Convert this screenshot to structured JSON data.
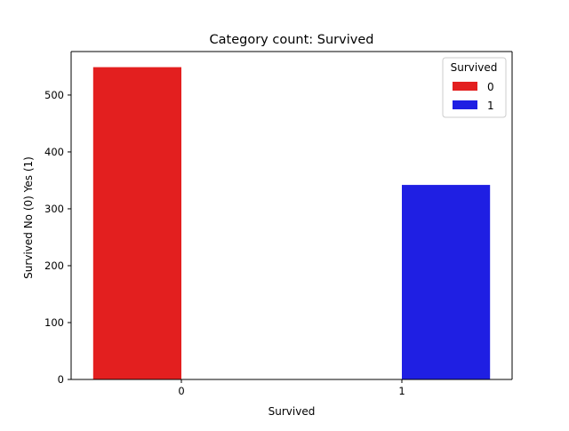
{
  "chart_data": {
    "type": "bar",
    "title": "Category count: Survived",
    "xlabel": "Survived",
    "ylabel": "Survived No (0) Yes (1)",
    "categories": [
      "0",
      "1"
    ],
    "series": [
      {
        "name": "0",
        "color": "#e31f1f",
        "values": [
          549,
          0
        ]
      },
      {
        "name": "1",
        "color": "#1f1fe3",
        "values": [
          0,
          342
        ]
      }
    ],
    "ylim": [
      0,
      576.45
    ],
    "yticks": [
      0,
      100,
      200,
      300,
      400,
      500
    ],
    "grid": false,
    "legend": {
      "title": "Survived",
      "placement": "top-right"
    }
  }
}
